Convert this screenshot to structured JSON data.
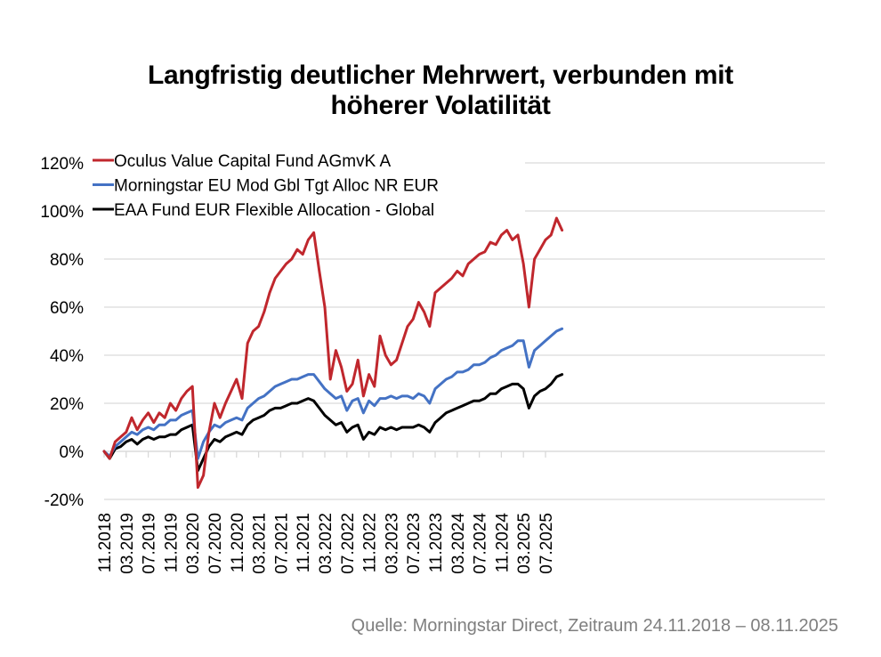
{
  "title_lines": [
    "Langfristig deutlicher Mehrwert, verbunden mit",
    "höherer Volatilität"
  ],
  "source": "Quelle: Morningstar Direct, Zeitraum 24.11.2018 – 08.11.2025",
  "chart_data": {
    "type": "line",
    "title": "Langfristig deutlicher Mehrwert, verbunden mit höherer Volatilität",
    "xlabel": "",
    "ylabel": "",
    "ylim": [
      -20,
      120
    ],
    "yticks": [
      -20,
      0,
      20,
      40,
      60,
      80,
      100,
      120
    ],
    "ytick_labels": [
      "-20%",
      "0%",
      "20%",
      "40%",
      "60%",
      "80%",
      "100%",
      "120%"
    ],
    "xtick_labels": [
      "11.2018",
      "03.2019",
      "07.2019",
      "11.2019",
      "03.2020",
      "07.2020",
      "11.2020",
      "03.2021",
      "07.2021",
      "11.2021",
      "03.2022",
      "07.2022",
      "11.2022",
      "03.2023",
      "07.2023",
      "11.2023",
      "03.2024",
      "07.2024",
      "11.2024",
      "03.2025",
      "07.2025"
    ],
    "x_unit": "months since 11.2018",
    "grid": true,
    "legend_position": "top-left",
    "x": [
      0,
      1,
      2,
      3,
      4,
      5,
      6,
      7,
      8,
      9,
      10,
      11,
      12,
      13,
      14,
      15,
      16,
      17,
      18,
      19,
      20,
      21,
      22,
      23,
      24,
      25,
      26,
      27,
      28,
      29,
      30,
      31,
      32,
      33,
      34,
      35,
      36,
      37,
      38,
      39,
      40,
      41,
      42,
      43,
      44,
      45,
      46,
      47,
      48,
      49,
      50,
      51,
      52,
      53,
      54,
      55,
      56,
      57,
      58,
      59,
      60,
      61,
      62,
      63,
      64,
      65,
      66,
      67,
      68,
      69,
      70,
      71,
      72,
      73,
      74,
      75,
      76,
      77,
      78,
      79,
      80,
      81,
      82,
      83
    ],
    "series": [
      {
        "name": "Oculus Value Capital Fund AGmvK A",
        "color": "#c0272d",
        "values": [
          0,
          -3,
          4,
          6,
          8,
          14,
          9,
          13,
          16,
          12,
          16,
          14,
          20,
          17,
          22,
          25,
          27,
          -15,
          -10,
          8,
          20,
          14,
          20,
          25,
          30,
          22,
          45,
          50,
          52,
          58,
          66,
          72,
          75,
          78,
          80,
          84,
          82,
          88,
          91,
          75,
          60,
          30,
          42,
          35,
          25,
          28,
          38,
          23,
          32,
          27,
          48,
          40,
          36,
          38,
          45,
          52,
          55,
          62,
          58,
          52,
          66,
          68,
          70,
          72,
          75,
          73,
          78,
          80,
          82,
          83,
          87,
          86,
          90,
          92,
          88,
          90,
          78,
          60,
          80,
          84,
          88,
          90,
          97,
          92
        ]
      },
      {
        "name": "Morningstar EU Mod Gbl Tgt Alloc NR EUR",
        "color": "#4472c4",
        "values": [
          0,
          -2,
          2,
          4,
          6,
          8,
          7,
          9,
          10,
          9,
          11,
          11,
          13,
          13,
          15,
          16,
          17,
          -3,
          4,
          8,
          11,
          10,
          12,
          13,
          14,
          13,
          18,
          20,
          22,
          23,
          25,
          27,
          28,
          29,
          30,
          30,
          31,
          32,
          32,
          29,
          26,
          24,
          22,
          23,
          17,
          21,
          22,
          16,
          21,
          19,
          22,
          22,
          23,
          22,
          23,
          23,
          22,
          24,
          23,
          20,
          26,
          28,
          30,
          31,
          33,
          33,
          34,
          36,
          36,
          37,
          39,
          40,
          42,
          43,
          44,
          46,
          46,
          35,
          42,
          44,
          46,
          48,
          50,
          51
        ]
      },
      {
        "name": "EAA Fund EUR Flexible Allocation - Global",
        "color": "#000000",
        "values": [
          0,
          -3,
          1,
          2,
          4,
          5,
          3,
          5,
          6,
          5,
          6,
          6,
          7,
          7,
          9,
          10,
          11,
          -8,
          -3,
          2,
          5,
          4,
          6,
          7,
          8,
          7,
          11,
          13,
          14,
          15,
          17,
          18,
          18,
          19,
          20,
          20,
          21,
          22,
          21,
          18,
          15,
          13,
          11,
          12,
          8,
          10,
          11,
          5,
          8,
          7,
          10,
          9,
          10,
          9,
          10,
          10,
          10,
          11,
          10,
          8,
          12,
          14,
          16,
          17,
          18,
          19,
          20,
          21,
          21,
          22,
          24,
          24,
          26,
          27,
          28,
          28,
          26,
          18,
          23,
          25,
          26,
          28,
          31,
          32
        ]
      }
    ]
  }
}
